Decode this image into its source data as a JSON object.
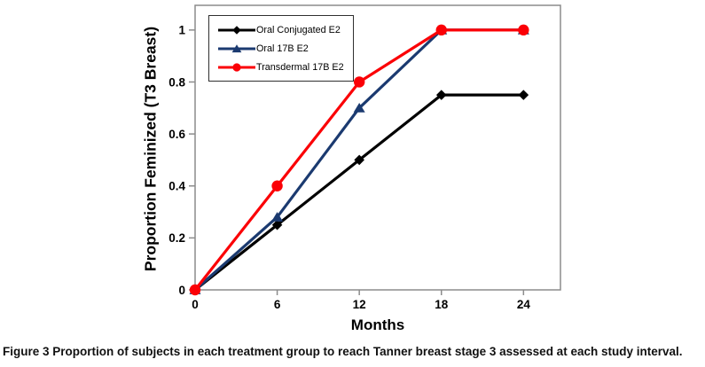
{
  "figure": {
    "caption_label": "Figure 3",
    "caption_text": "Proportion of subjects in each treatment group to reach Tanner breast stage 3 assessed at each study interval."
  },
  "chart_data": {
    "type": "line",
    "title": "",
    "xlabel": "Months",
    "ylabel": "Proportion Feminized (T3 Breast)",
    "x": [
      0,
      6,
      12,
      18,
      24
    ],
    "x_tick_labels": [
      "0",
      "6",
      "12",
      "18",
      "24"
    ],
    "y_tick_values": [
      0,
      0.2,
      0.4,
      0.6,
      0.8,
      1
    ],
    "y_tick_labels": [
      "0",
      "0.2",
      "0.4",
      "0.6",
      "0.8",
      "1"
    ],
    "xlim": [
      0,
      26.7
    ],
    "ylim": [
      0,
      1.095
    ],
    "grid": false,
    "legend_position": "top-left-inside",
    "axis_color": "#8c8c8c",
    "series": [
      {
        "name": "Oral Conjugated E2",
        "color": "#000000",
        "marker": "diamond",
        "values": [
          0,
          0.25,
          0.5,
          0.75,
          0.75
        ]
      },
      {
        "name": "Oral 17B E2",
        "color": "#1B3A70",
        "marker": "triangle",
        "values": [
          0,
          0.28,
          0.7,
          1,
          1
        ]
      },
      {
        "name": "Transdermal 17B E2",
        "color": "#FB0006",
        "marker": "circle",
        "values": [
          0,
          0.4,
          0.8,
          1,
          1
        ]
      }
    ]
  }
}
